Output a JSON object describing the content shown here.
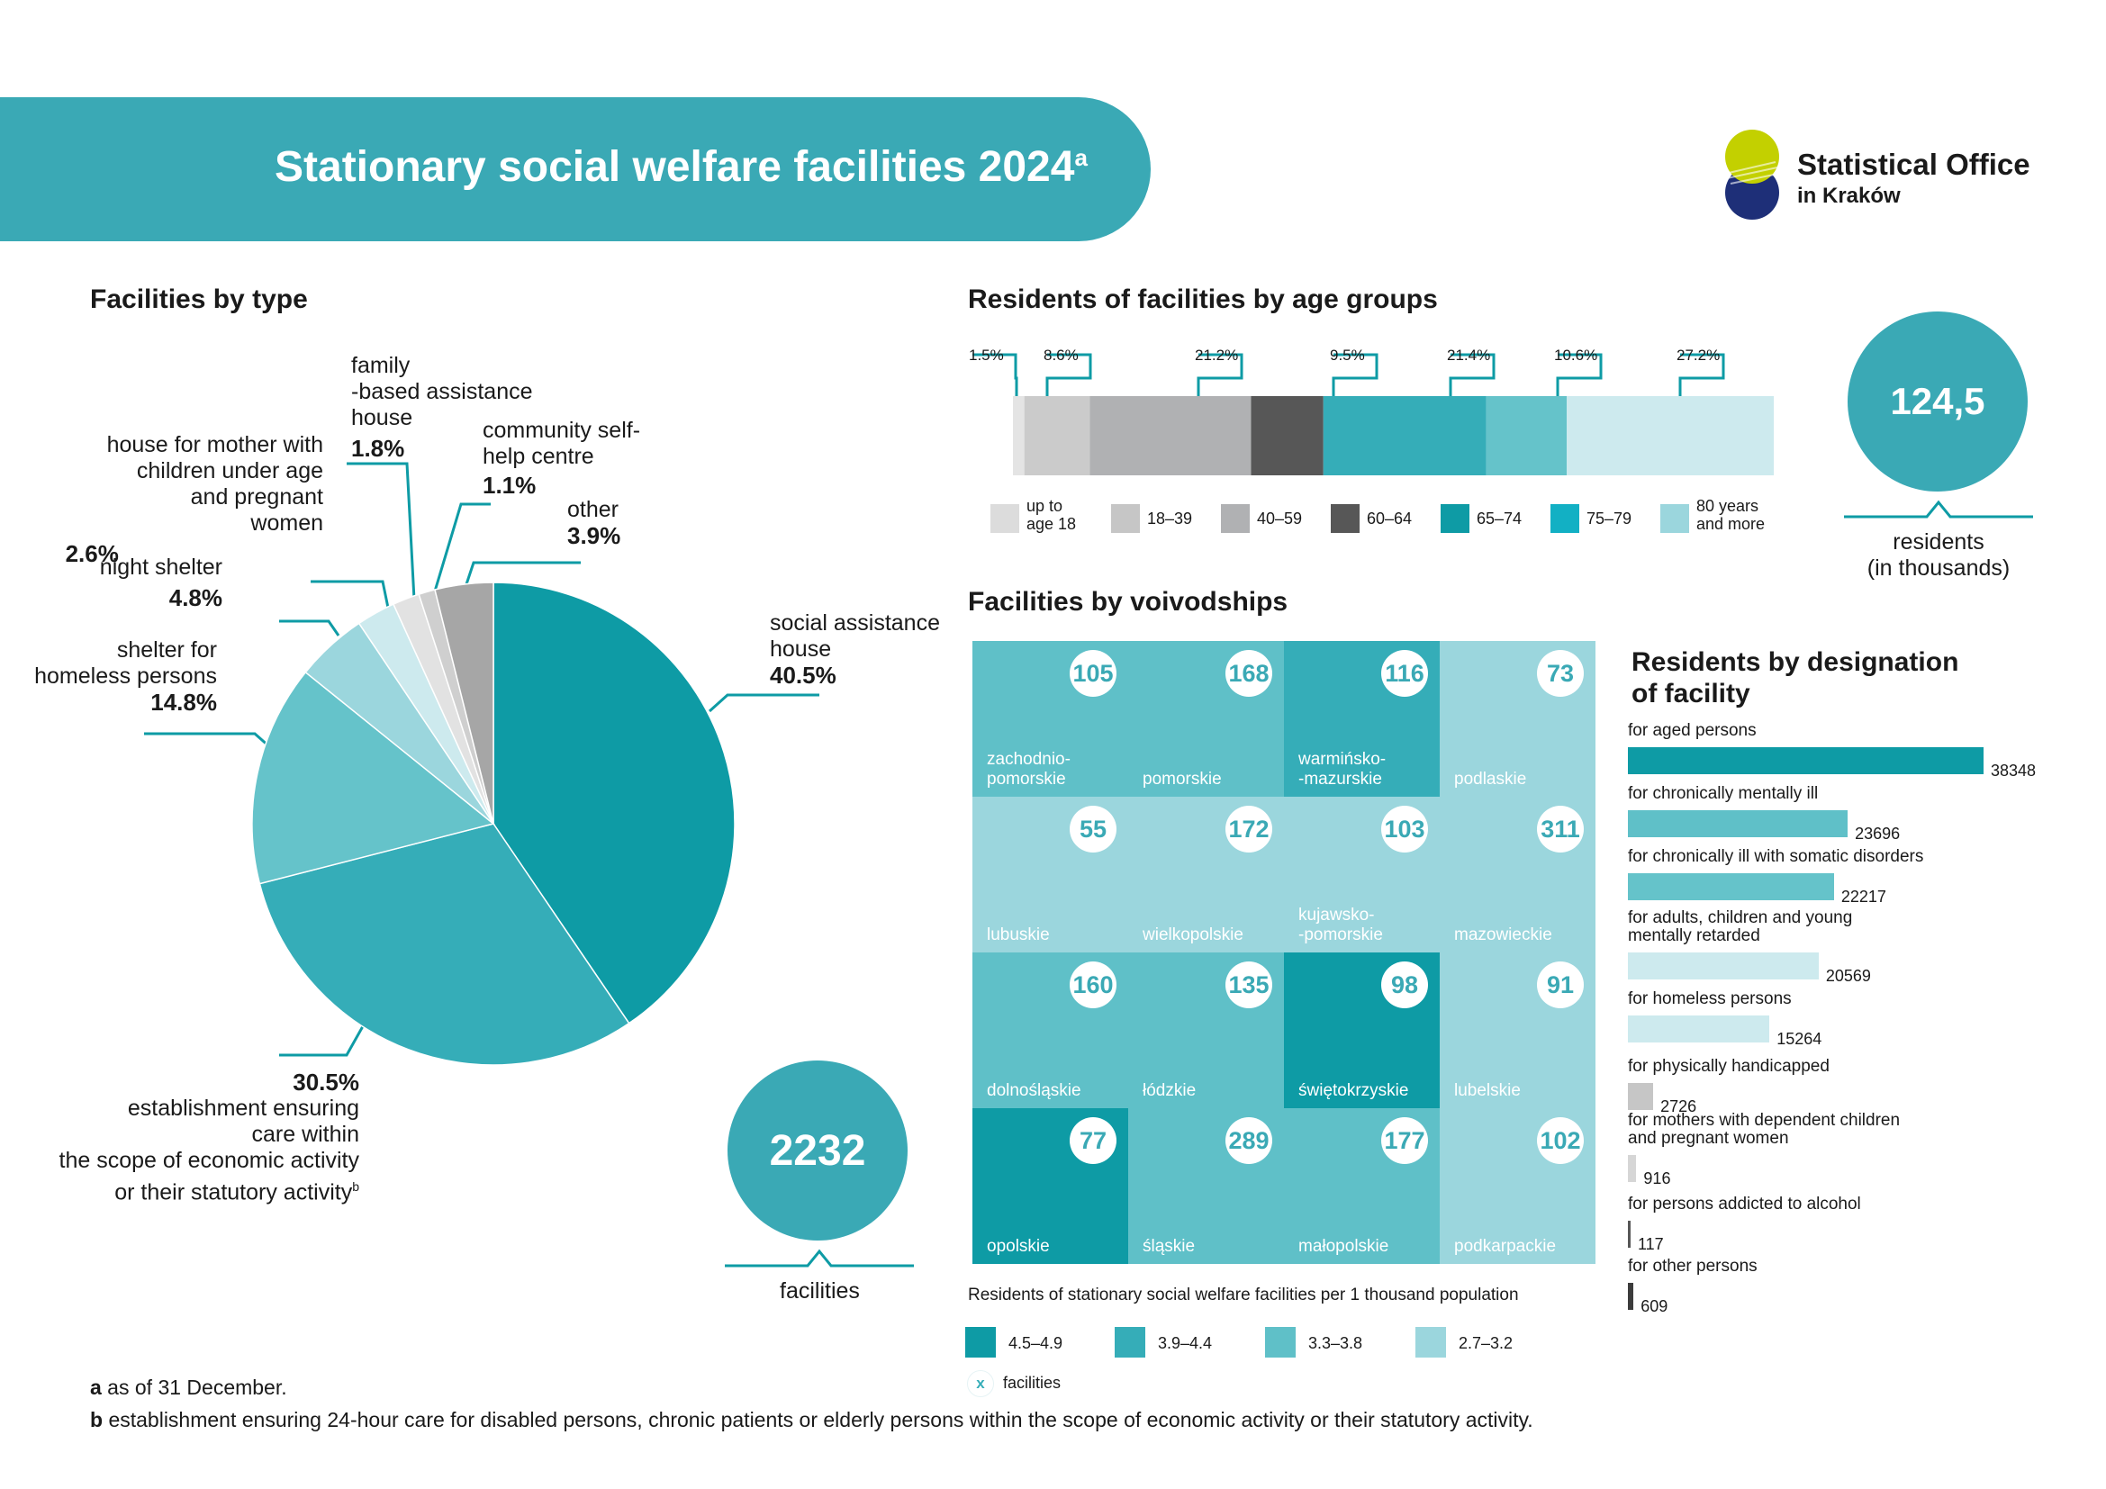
{
  "header": {
    "title": "Stationary social welfare facilities 2024",
    "title_sup": "a"
  },
  "logo": {
    "line1": "Statistical Office",
    "line2": "in Kraków"
  },
  "facilities_by_type": {
    "title": "Facilities by type",
    "total": "2232",
    "total_label": "facilities"
  },
  "age_groups": {
    "title": "Residents of facilities by age groups",
    "total": "124,5",
    "total_label_1": "residents",
    "total_label_2": "(in thousands)"
  },
  "voivodships": {
    "title": "Facilities by voivodships",
    "tiles": [
      {
        "name1": "zachodnio-",
        "name2": "pomorskie",
        "value": "105",
        "color": "#5fc0c8"
      },
      {
        "name1": "",
        "name2": "pomorskie",
        "value": "168",
        "color": "#5fc0c8"
      },
      {
        "name1": "warmińsko-",
        "name2": "-mazurskie",
        "value": "116",
        "color": "#35adb8"
      },
      {
        "name1": "",
        "name2": "podlaskie",
        "value": "73",
        "color": "#9bd6dd"
      },
      {
        "name1": "",
        "name2": "lubuskie",
        "value": "55",
        "color": "#9bd6dd"
      },
      {
        "name1": "",
        "name2": "wielkopolskie",
        "value": "172",
        "color": "#9bd6dd"
      },
      {
        "name1": "kujawsko-",
        "name2": "-pomorskie",
        "value": "103",
        "color": "#9bd6dd"
      },
      {
        "name1": "",
        "name2": "mazowieckie",
        "value": "311",
        "color": "#9bd6dd"
      },
      {
        "name1": "",
        "name2": "dolnośląskie",
        "value": "160",
        "color": "#5fc0c8"
      },
      {
        "name1": "",
        "name2": "łódzkie",
        "value": "135",
        "color": "#5fc0c8"
      },
      {
        "name1": "",
        "name2": "świętokrzyskie",
        "value": "98",
        "color": "#0e9ba5"
      },
      {
        "name1": "",
        "name2": "lubelskie",
        "value": "91",
        "color": "#9bd6dd"
      },
      {
        "name1": "",
        "name2": "opolskie",
        "value": "77",
        "color": "#0e9ba5"
      },
      {
        "name1": "",
        "name2": "śląskie",
        "value": "289",
        "color": "#5fc0c8"
      },
      {
        "name1": "",
        "name2": "małopolskie",
        "value": "177",
        "color": "#5fc0c8"
      },
      {
        "name1": "",
        "name2": "podkarpackie",
        "value": "102",
        "color": "#9bd6dd"
      }
    ],
    "legend_title": "Residents of stationary social welfare facilities per 1 thousand population",
    "legend": [
      {
        "label": "4.5–4.9",
        "color": "#0e9ba5"
      },
      {
        "label": "3.9–4.4",
        "color": "#35adb8"
      },
      {
        "label": "3.3–3.8",
        "color": "#5fc0c8"
      },
      {
        "label": "2.7–3.2",
        "color": "#9bd6dd"
      }
    ],
    "facilities_marker": "x",
    "facilities_label": "facilities"
  },
  "designation": {
    "title_1": "Residents by designation",
    "title_2": "of facility"
  },
  "footnotes": {
    "a_key": "a",
    "a_text": " as of 31 December.",
    "b_key": "b",
    "b_text": " establishment ensuring 24-hour care for disabled persons, chronic patients or elderly persons within the scope of economic activity or their statutory activity."
  },
  "chart_data": [
    {
      "type": "pie",
      "title": "Facilities by type",
      "slices": [
        {
          "label": "social assistance house",
          "value": 40.5,
          "color": "#0e9ba5"
        },
        {
          "label": "establishment ensuring care within the scope of economic activity or their statutory activity",
          "value": 30.5,
          "color": "#35adb8"
        },
        {
          "label": "shelter for homeless persons",
          "value": 14.8,
          "color": "#65c3ca"
        },
        {
          "label": "night shelter",
          "value": 4.8,
          "color": "#9bd6dd"
        },
        {
          "label": "house for mother with children under age and pregnant women",
          "value": 2.6,
          "color": "#cdeaee"
        },
        {
          "label": "family-based assistance house",
          "value": 1.8,
          "color": "#e2e2e2"
        },
        {
          "label": "community self-help centre",
          "value": 1.1,
          "color": "#cfcfcf"
        },
        {
          "label": "other",
          "value": 3.9,
          "color": "#a6a6a6"
        }
      ],
      "labels": [
        {
          "lines": [
            "social assistance",
            "house"
          ],
          "pct": "40.5%"
        },
        {
          "lines": [
            "establishment ensuring",
            "care within",
            "the scope of economic activity",
            "or their statutory activity"
          ],
          "pct": "30.5%",
          "sup": "b"
        },
        {
          "lines": [
            "shelter for",
            "homeless persons"
          ],
          "pct": "14.8%"
        },
        {
          "lines": [
            "night shelter"
          ],
          "pct": "4.8%"
        },
        {
          "lines": [
            "house for mother with",
            "children under age",
            "and pregnant",
            "women"
          ],
          "pct": "2.6%"
        },
        {
          "lines": [
            "family",
            "-based assistance",
            "house"
          ],
          "pct": "1.8%"
        },
        {
          "lines": [
            "community self-",
            "help centre"
          ],
          "pct": "1.1%"
        },
        {
          "lines": [
            "other"
          ],
          "pct": "3.9%"
        }
      ]
    },
    {
      "type": "bar",
      "orientation": "stacked-horizontal",
      "title": "Residents of facilities by age groups",
      "categories": [
        "up to age 18",
        "18–39",
        "40–59",
        "60–64",
        "65–74",
        "75–79",
        "80 years and more"
      ],
      "values": [
        1.5,
        8.6,
        21.2,
        9.5,
        21.4,
        10.6,
        27.2
      ],
      "value_labels": [
        "1.5%",
        "8.6%",
        "21.2%",
        "9.5%",
        "21.4%",
        "10.6%",
        "27.2%"
      ],
      "bar_colors": [
        "#e4e4e4",
        "#cbcbcb",
        "#b0b1b3",
        "#575757",
        "#35adb8",
        "#65c3ca",
        "#cdeaee"
      ],
      "legend_lines": [
        [
          "up to",
          "age 18"
        ],
        [
          "18–39"
        ],
        [
          "40–59"
        ],
        [
          "60–64"
        ],
        [
          "65–74"
        ],
        [
          "75–79"
        ],
        [
          "80 years",
          "and more"
        ]
      ],
      "legend_colors": [
        "#dcdcdc",
        "#c6c6c6",
        "#b0b1b3",
        "#575757",
        "#0e9ba5",
        "#12b0c4",
        "#9bd6dd"
      ],
      "unit": "%"
    },
    {
      "type": "bar",
      "orientation": "horizontal",
      "title": "Residents by designation of facility",
      "categories": [
        [
          "for aged persons"
        ],
        [
          "for chronically mentally ill"
        ],
        [
          "for chronically ill with somatic disorders"
        ],
        [
          "for adults, children and young",
          "mentally retarded"
        ],
        [
          "for homeless persons"
        ],
        [
          "for physically handicapped"
        ],
        [
          "for mothers with dependent children",
          "and pregnant women"
        ],
        [
          "for persons addicted to alcohol"
        ],
        [
          "for other persons"
        ]
      ],
      "values": [
        38348,
        23696,
        22217,
        20569,
        15264,
        2726,
        916,
        117,
        609
      ],
      "value_labels": [
        "38348",
        "23696",
        "22217",
        "20569",
        "15264",
        "2726",
        "916",
        "117",
        "609"
      ],
      "colors": [
        "#0e9ba5",
        "#5fc0c8",
        "#65c3ca",
        "#cdeaee",
        "#cdeaee",
        "#c6c6c6",
        "#d6d6d6",
        "#575757",
        "#3c3c3c"
      ]
    }
  ]
}
